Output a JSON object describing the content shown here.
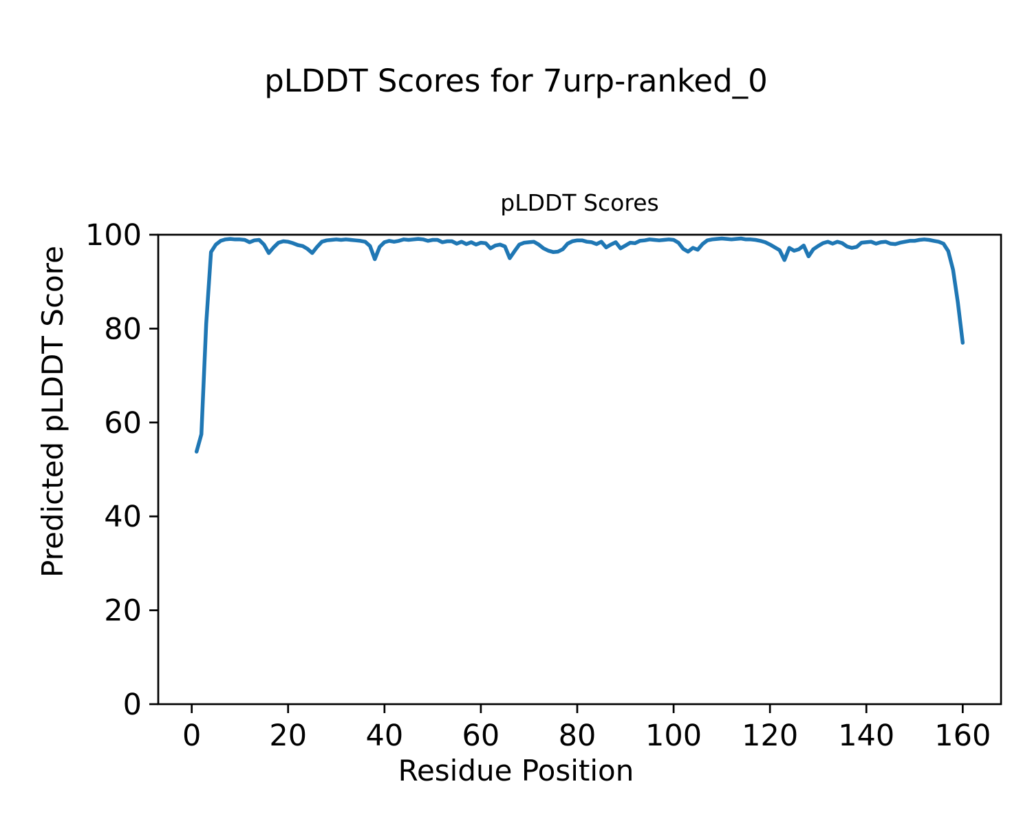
{
  "chart_data": {
    "type": "line",
    "suptitle": "pLDDT Scores for 7urp-ranked_0",
    "title": "pLDDT Scores",
    "xlabel": "Residue Position",
    "ylabel": "Predicted pLDDT Score",
    "xlim": [
      -6.95,
      167.95
    ],
    "ylim": [
      0,
      100
    ],
    "xticks": [
      0,
      20,
      40,
      60,
      80,
      100,
      120,
      140,
      160
    ],
    "yticks": [
      0,
      20,
      40,
      60,
      80,
      100
    ],
    "grid": false,
    "legend": "none",
    "line_color": "#1f77b4",
    "line_width": 5.5,
    "spine_color": "#000000",
    "background_color": "#ffffff",
    "x": [
      1,
      2,
      3,
      4,
      5,
      6,
      7,
      8,
      9,
      10,
      11,
      12,
      13,
      14,
      15,
      16,
      17,
      18,
      19,
      20,
      21,
      22,
      23,
      24,
      25,
      26,
      27,
      28,
      29,
      30,
      31,
      32,
      33,
      34,
      35,
      36,
      37,
      38,
      39,
      40,
      41,
      42,
      43,
      44,
      45,
      46,
      47,
      48,
      49,
      50,
      51,
      52,
      53,
      54,
      55,
      56,
      57,
      58,
      59,
      60,
      61,
      62,
      63,
      64,
      65,
      66,
      67,
      68,
      69,
      70,
      71,
      72,
      73,
      74,
      75,
      76,
      77,
      78,
      79,
      80,
      81,
      82,
      83,
      84,
      85,
      86,
      87,
      88,
      89,
      90,
      91,
      92,
      93,
      94,
      95,
      96,
      97,
      98,
      99,
      100,
      101,
      102,
      103,
      104,
      105,
      106,
      107,
      108,
      109,
      110,
      111,
      112,
      113,
      114,
      115,
      116,
      117,
      118,
      119,
      120,
      121,
      122,
      123,
      124,
      125,
      126,
      127,
      128,
      129,
      130,
      131,
      132,
      133,
      134,
      135,
      136,
      137,
      138,
      139,
      140,
      141,
      142,
      143,
      144,
      145,
      146,
      147,
      148,
      149,
      150,
      151,
      152,
      153,
      154,
      155,
      156,
      157,
      158,
      159,
      160
    ],
    "values": [
      53.8,
      57.5,
      81.0,
      96.3,
      97.9,
      98.7,
      99.0,
      99.1,
      99.0,
      99.0,
      98.9,
      98.4,
      98.8,
      98.9,
      97.9,
      96.1,
      97.3,
      98.3,
      98.6,
      98.5,
      98.2,
      97.8,
      97.6,
      97.0,
      96.1,
      97.4,
      98.5,
      98.8,
      98.9,
      99.0,
      98.9,
      99.0,
      98.9,
      98.8,
      98.7,
      98.5,
      97.6,
      94.8,
      97.4,
      98.4,
      98.7,
      98.5,
      98.7,
      99.0,
      98.9,
      99.0,
      99.1,
      99.0,
      98.7,
      98.9,
      98.9,
      98.4,
      98.6,
      98.6,
      98.1,
      98.5,
      98.0,
      98.4,
      97.9,
      98.3,
      98.2,
      97.1,
      97.7,
      97.9,
      97.5,
      95.0,
      96.5,
      97.9,
      98.3,
      98.4,
      98.5,
      97.9,
      97.1,
      96.6,
      96.3,
      96.4,
      96.9,
      98.1,
      98.6,
      98.8,
      98.8,
      98.5,
      98.4,
      98.0,
      98.5,
      97.3,
      97.9,
      98.4,
      97.1,
      97.7,
      98.3,
      98.2,
      98.7,
      98.8,
      99.0,
      98.9,
      98.8,
      98.9,
      99.0,
      98.9,
      98.3,
      97.0,
      96.4,
      97.2,
      96.8,
      98.0,
      98.8,
      99.0,
      99.1,
      99.2,
      99.1,
      99.0,
      99.1,
      99.2,
      99.0,
      99.0,
      98.9,
      98.7,
      98.4,
      97.9,
      97.3,
      96.7,
      94.6,
      97.2,
      96.6,
      96.9,
      97.7,
      95.4,
      96.9,
      97.6,
      98.2,
      98.5,
      98.1,
      98.5,
      98.2,
      97.5,
      97.2,
      97.4,
      98.3,
      98.4,
      98.5,
      98.1,
      98.4,
      98.5,
      98.1,
      98.0,
      98.3,
      98.5,
      98.7,
      98.7,
      98.9,
      99.0,
      98.9,
      98.7,
      98.5,
      98.1,
      96.5,
      92.5,
      85.5,
      77.0
    ]
  }
}
